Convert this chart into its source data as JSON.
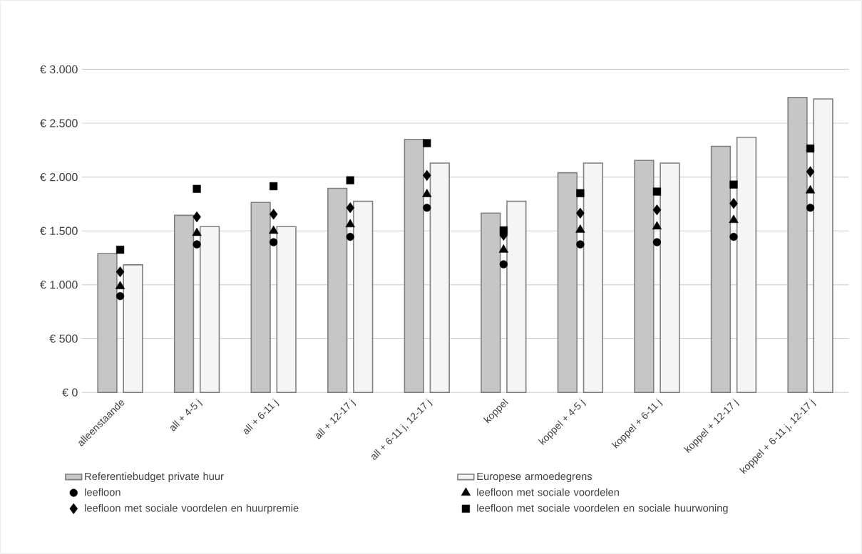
{
  "chart_data": {
    "type": "bar",
    "categories": [
      "alleenstaande",
      "all + 4-5 j",
      "all + 6-11 j",
      "all + 12-17 j",
      "all + 6-11 j, 12-17 j",
      "koppel",
      "koppel + 4-5 j",
      "koppel + 6-11 j",
      "koppel + 12-17 j",
      "koppel + 6-11 j, 12-17 j"
    ],
    "series": [
      {
        "name": "Referentiebudget private huur",
        "color": "#808080",
        "values": [
          1290,
          1645,
          1765,
          1895,
          2350,
          1665,
          2040,
          2155,
          2285,
          2740
        ]
      },
      {
        "name": "Europese armoedegrens",
        "color": "#808080",
        "values": [
          1185,
          1540,
          1540,
          1775,
          2130,
          1775,
          2130,
          2130,
          2370,
          2725
        ]
      },
      {
        "name": "leefloon",
        "type": "scatter",
        "marker": "circle",
        "color": "#000000",
        "values": [
          895,
          1375,
          1395,
          1445,
          1715,
          1190,
          1375,
          1395,
          1445,
          1715
        ]
      },
      {
        "name": "leefloon met sociale voordelen",
        "type": "scatter",
        "marker": "triangle",
        "color": "#000000",
        "values": [
          985,
          1480,
          1500,
          1560,
          1840,
          1325,
          1510,
          1540,
          1600,
          1875
        ]
      },
      {
        "name": "leefloon met sociale voordelen en huurpremie",
        "type": "scatter",
        "marker": "diamond",
        "color": "#000000",
        "values": [
          1120,
          1630,
          1655,
          1715,
          2015,
          1460,
          1665,
          1695,
          1755,
          2050
        ]
      },
      {
        "name": "leefloon met sociale voordelen en sociale huurwoning",
        "type": "scatter",
        "marker": "square",
        "color": "#000000",
        "values": [
          1325,
          1890,
          1915,
          1970,
          2315,
          1505,
          1850,
          1865,
          1930,
          2265
        ]
      }
    ],
    "ylim": [
      0,
      3000
    ],
    "yticks": [
      {
        "value": 0,
        "label": "€ 0"
      },
      {
        "value": 500,
        "label": "€ 500"
      },
      {
        "value": 1000,
        "label": "€ 1.000"
      },
      {
        "value": 1500,
        "label": "€ 1.500"
      },
      {
        "value": 2000,
        "label": "€ 2.000"
      },
      {
        "value": 2500,
        "label": "€ 2.500"
      },
      {
        "value": 3000,
        "label": "€ 3.000"
      }
    ],
    "grid": "y",
    "legend": "bottom"
  }
}
